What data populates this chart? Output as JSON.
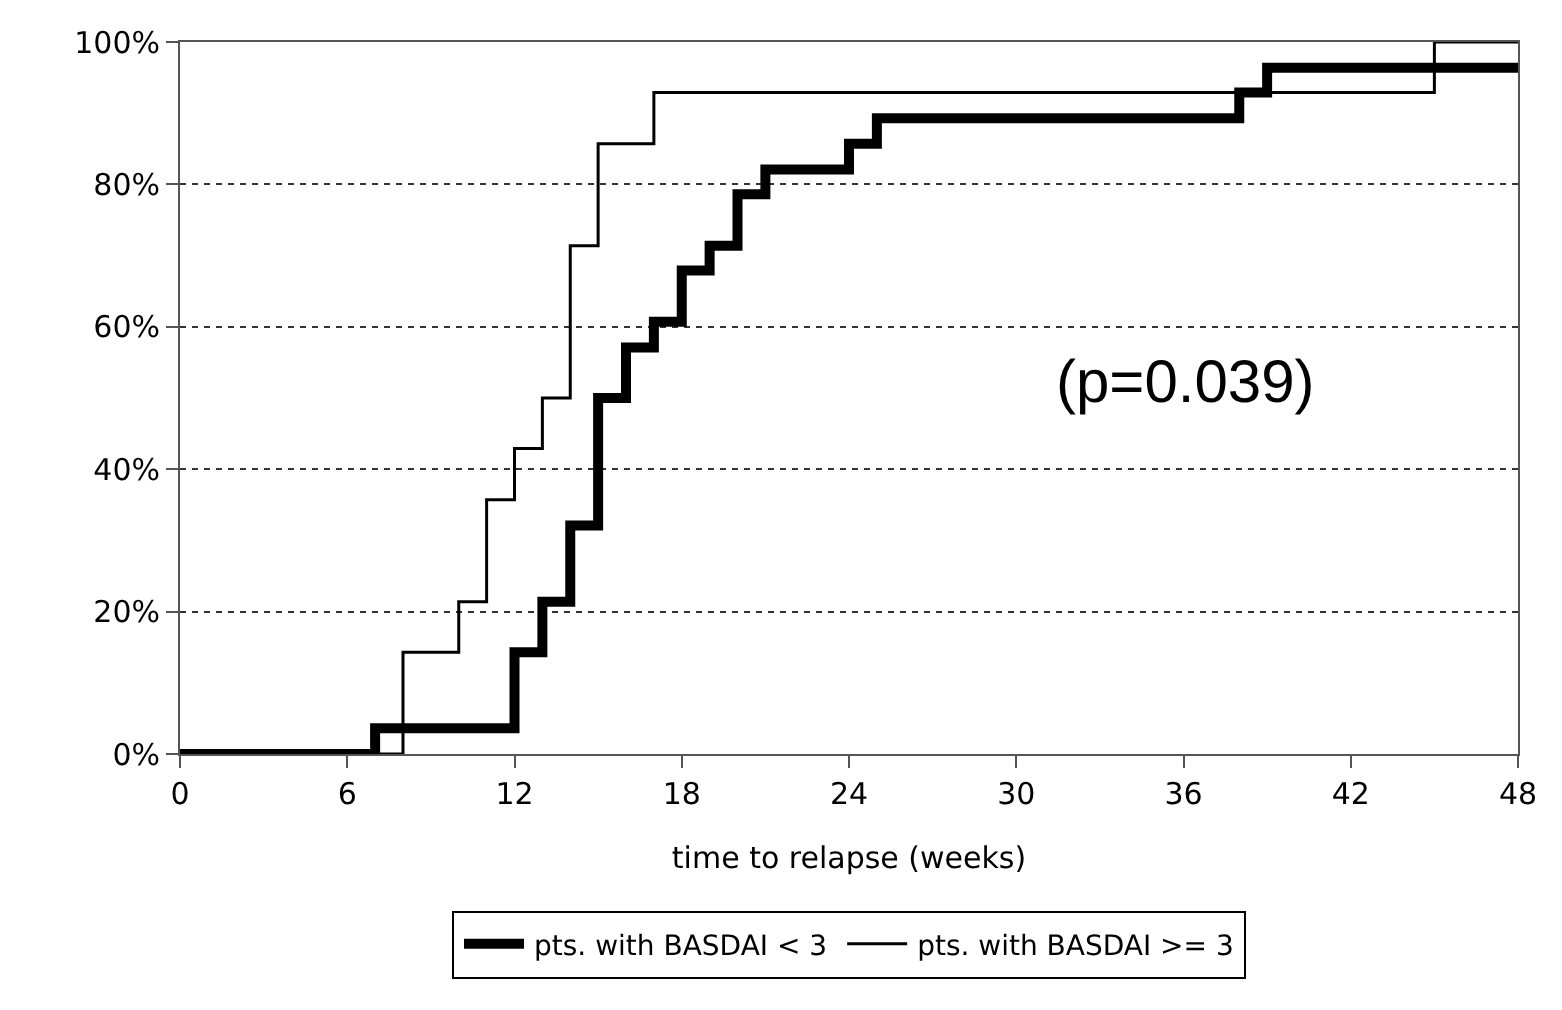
{
  "chart_data": {
    "type": "step",
    "xlabel": "time to relapse (weeks)",
    "series": [
      {
        "name": "pts. with BASDAI < 3",
        "color": "#000000",
        "x": [
          0,
          7,
          12,
          13,
          14,
          15,
          16,
          17,
          18,
          19,
          20,
          21,
          24,
          25,
          38,
          39,
          48
        ],
        "values": [
          0,
          3.6,
          14.3,
          21.4,
          32.1,
          50,
          57.1,
          60.7,
          67.9,
          71.4,
          78.6,
          82.1,
          85.7,
          89.3,
          92.9,
          96.4,
          96.4
        ]
      },
      {
        "name": "pts. with BASDAI >= 3",
        "color": "#000000",
        "x": [
          0,
          8,
          10,
          11,
          12,
          13,
          14,
          15,
          17,
          45,
          48
        ],
        "values": [
          0,
          14.3,
          21.4,
          35.7,
          42.9,
          50,
          71.4,
          85.7,
          92.9,
          100,
          100
        ]
      }
    ],
    "xlim": [
      0,
      48
    ],
    "xticks": [
      0,
      6,
      12,
      18,
      24,
      30,
      36,
      42,
      48
    ],
    "ylim": [
      0,
      100
    ],
    "yticks": [
      {
        "value": 0,
        "label": "0%"
      },
      {
        "value": 20,
        "label": "20%"
      },
      {
        "value": 40,
        "label": "40%"
      },
      {
        "value": 60,
        "label": "60%"
      },
      {
        "value": 80,
        "label": "80%"
      },
      {
        "value": 100,
        "label": "100%"
      }
    ],
    "grid": "y",
    "legend": "bottom",
    "line_style": "solid",
    "marker": "none",
    "annotations": [
      "(p=0.039)"
    ]
  }
}
